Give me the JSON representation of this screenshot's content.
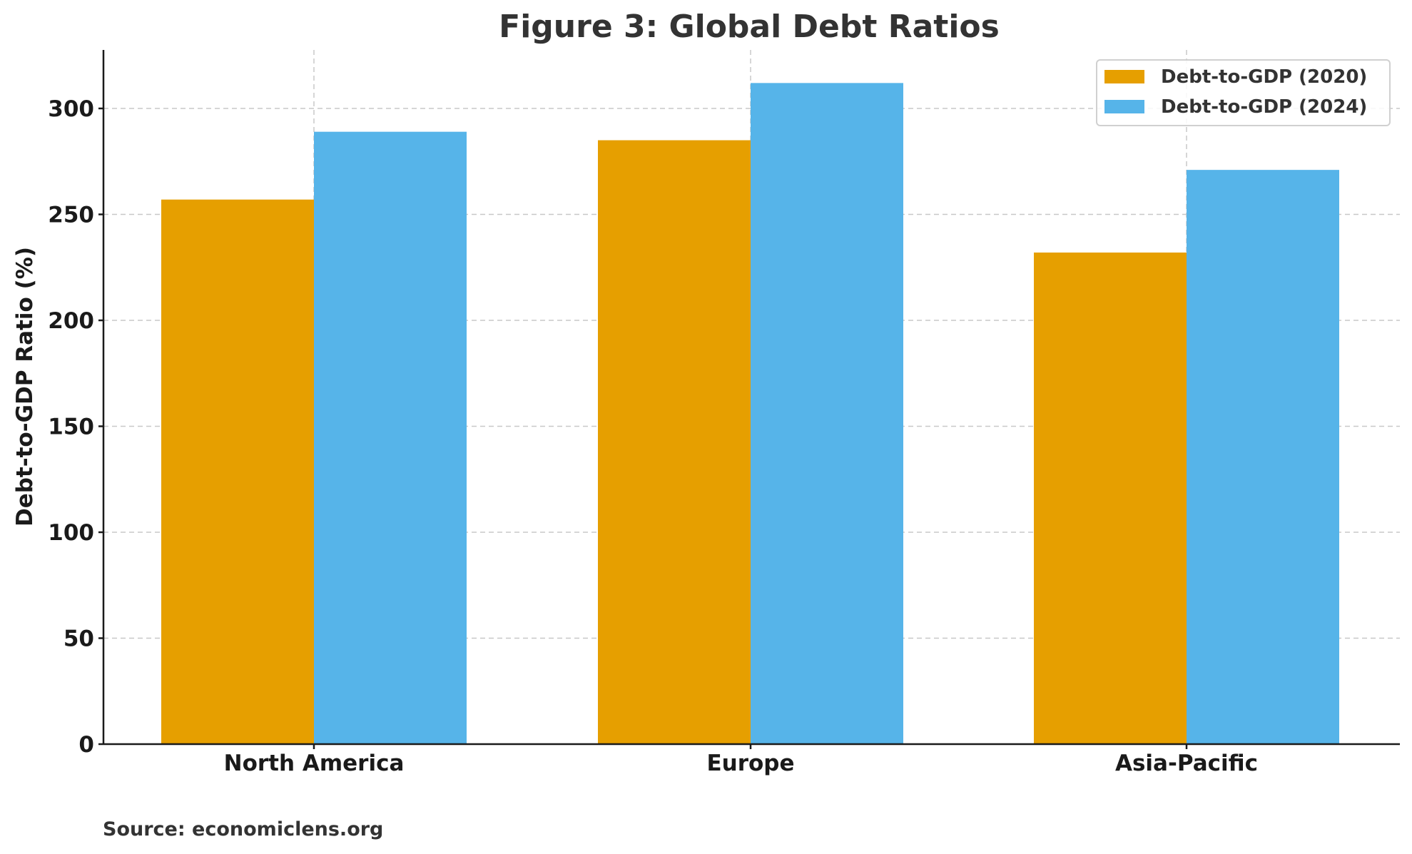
{
  "chart_data": {
    "type": "bar",
    "title": "Figure 3: Global Debt Ratios",
    "xlabel": "",
    "ylabel": "Debt-to-GDP Ratio (%)",
    "categories": [
      "North America",
      "Europe",
      "Asia-Pacific"
    ],
    "series": [
      {
        "name": "Debt-to-GDP (2020)",
        "color": "#E69F00",
        "values": [
          257,
          285,
          232
        ]
      },
      {
        "name": "Debt-to-GDP (2024)",
        "color": "#56B4E9",
        "values": [
          289,
          312,
          271
        ]
      }
    ],
    "ylim": [
      0,
      328
    ],
    "yticks": [
      0,
      50,
      100,
      150,
      200,
      250,
      300
    ],
    "grid": true,
    "legend_position": "upper right",
    "source": "Source: economiclens.org"
  }
}
